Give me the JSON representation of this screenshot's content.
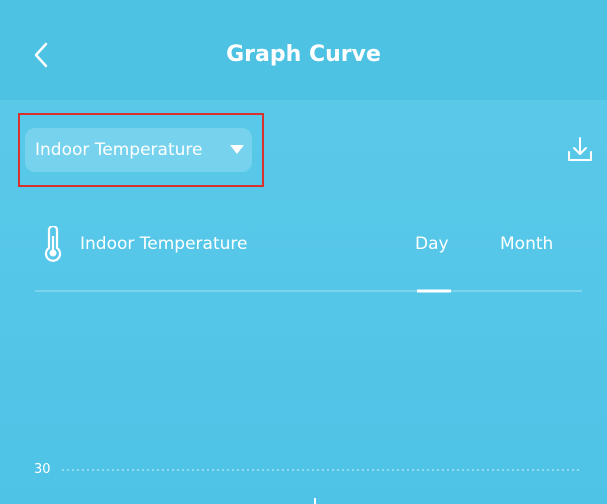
{
  "header": {
    "title": "Graph Curve"
  },
  "selector": {
    "label": "Indoor Temperature"
  },
  "panel": {
    "sensor": "Indoor Temperature",
    "tabs": [
      "Day",
      "Month"
    ]
  },
  "chart": {
    "ytick": "30"
  }
}
